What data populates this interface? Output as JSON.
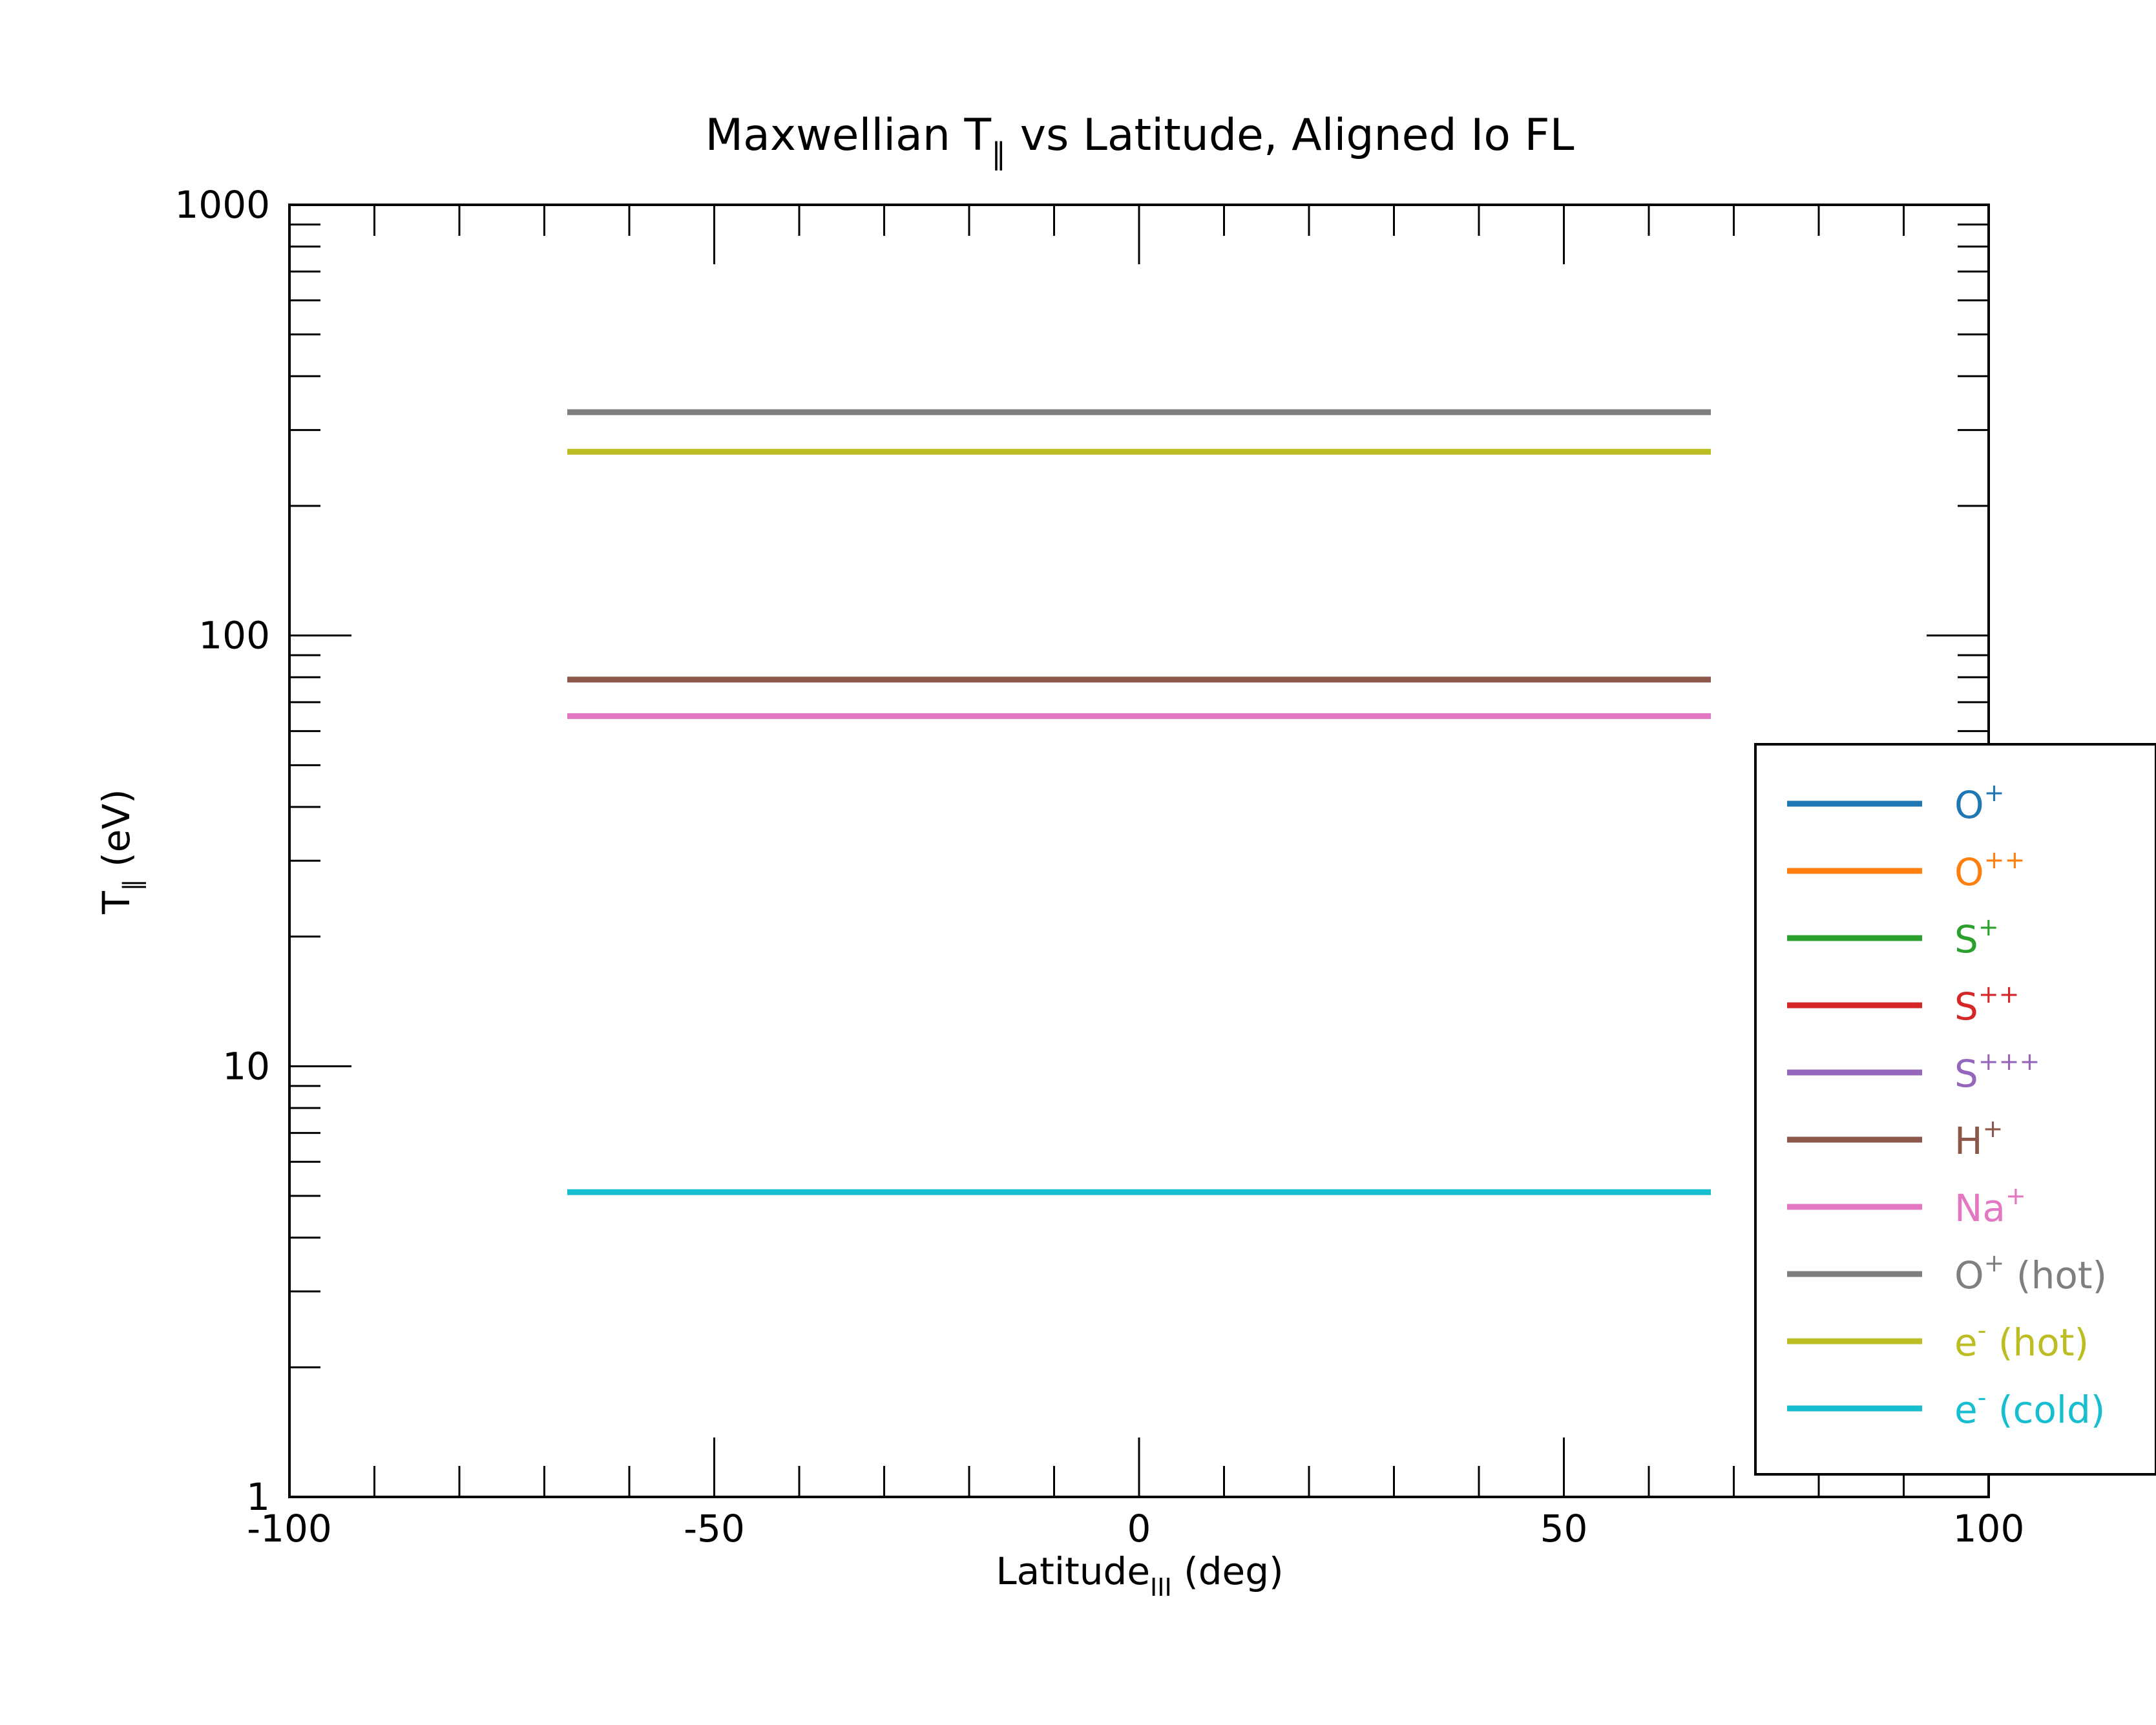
{
  "chart_data": {
    "type": "line",
    "title": {
      "main": "Maxwellian T",
      "sub": "∥",
      "rest": " vs Latitude, Aligned Io FL"
    },
    "xlabel": {
      "main": "Latitude",
      "sub": "III",
      "rest": " (deg)"
    },
    "ylabel": {
      "main": "T",
      "sub": "∥",
      "rest": " (eV)"
    },
    "x_scale": "linear",
    "y_scale": "log",
    "xlim": [
      -100,
      100
    ],
    "ylim": [
      1,
      1000
    ],
    "x_ticks": [
      -100,
      -50,
      0,
      50,
      100
    ],
    "x_tick_labels": [
      "-100",
      "-50",
      "0",
      "50",
      "100"
    ],
    "y_ticks": [
      1,
      10,
      100,
      1000
    ],
    "y_tick_labels": [
      "1",
      "10",
      "100",
      "1000"
    ],
    "grid": false,
    "legend_position": "right",
    "series": [
      {
        "name": {
          "base": "O",
          "sup": "+",
          "rest": ""
        },
        "color": "#1f77b4",
        "x": [
          -67.3,
          67.3
        ],
        "y": [
          null,
          null
        ]
      },
      {
        "name": {
          "base": "O",
          "sup": "++",
          "rest": ""
        },
        "color": "#ff7f0e",
        "x": [
          -67.3,
          67.3
        ],
        "y": [
          null,
          null
        ]
      },
      {
        "name": {
          "base": "S",
          "sup": "+",
          "rest": ""
        },
        "color": "#2ca02c",
        "x": [
          -67.3,
          67.3
        ],
        "y": [
          null,
          null
        ]
      },
      {
        "name": {
          "base": "S",
          "sup": "++",
          "rest": ""
        },
        "color": "#d62728",
        "x": [
          -67.3,
          67.3
        ],
        "y": [
          null,
          null
        ]
      },
      {
        "name": {
          "base": "S",
          "sup": "+++",
          "rest": ""
        },
        "color": "#9467bd",
        "x": [
          -67.3,
          67.3
        ],
        "y": [
          null,
          null
        ]
      },
      {
        "name": {
          "base": "H",
          "sup": "+",
          "rest": ""
        },
        "color": "#8c564b",
        "x": [
          -67.3,
          67.3
        ],
        "y": [
          79,
          79
        ]
      },
      {
        "name": {
          "base": "Na",
          "sup": "+",
          "rest": ""
        },
        "color": "#e377c2",
        "x": [
          -67.3,
          67.3
        ],
        "y": [
          65,
          65
        ]
      },
      {
        "name": {
          "base": "O",
          "sup": "+",
          "rest": " (hot)"
        },
        "color": "#7f7f7f",
        "x": [
          -67.3,
          67.3
        ],
        "y": [
          330,
          330
        ]
      },
      {
        "name": {
          "base": "e",
          "sup": "-",
          "rest": " (hot)"
        },
        "color": "#bcbd22",
        "x": [
          -67.3,
          67.3
        ],
        "y": [
          267,
          267
        ]
      },
      {
        "name": {
          "base": "e",
          "sup": "-",
          "rest": " (cold)"
        },
        "color": "#17becf",
        "x": [
          -67.3,
          67.3
        ],
        "y": [
          5.1,
          5.1
        ]
      }
    ]
  }
}
